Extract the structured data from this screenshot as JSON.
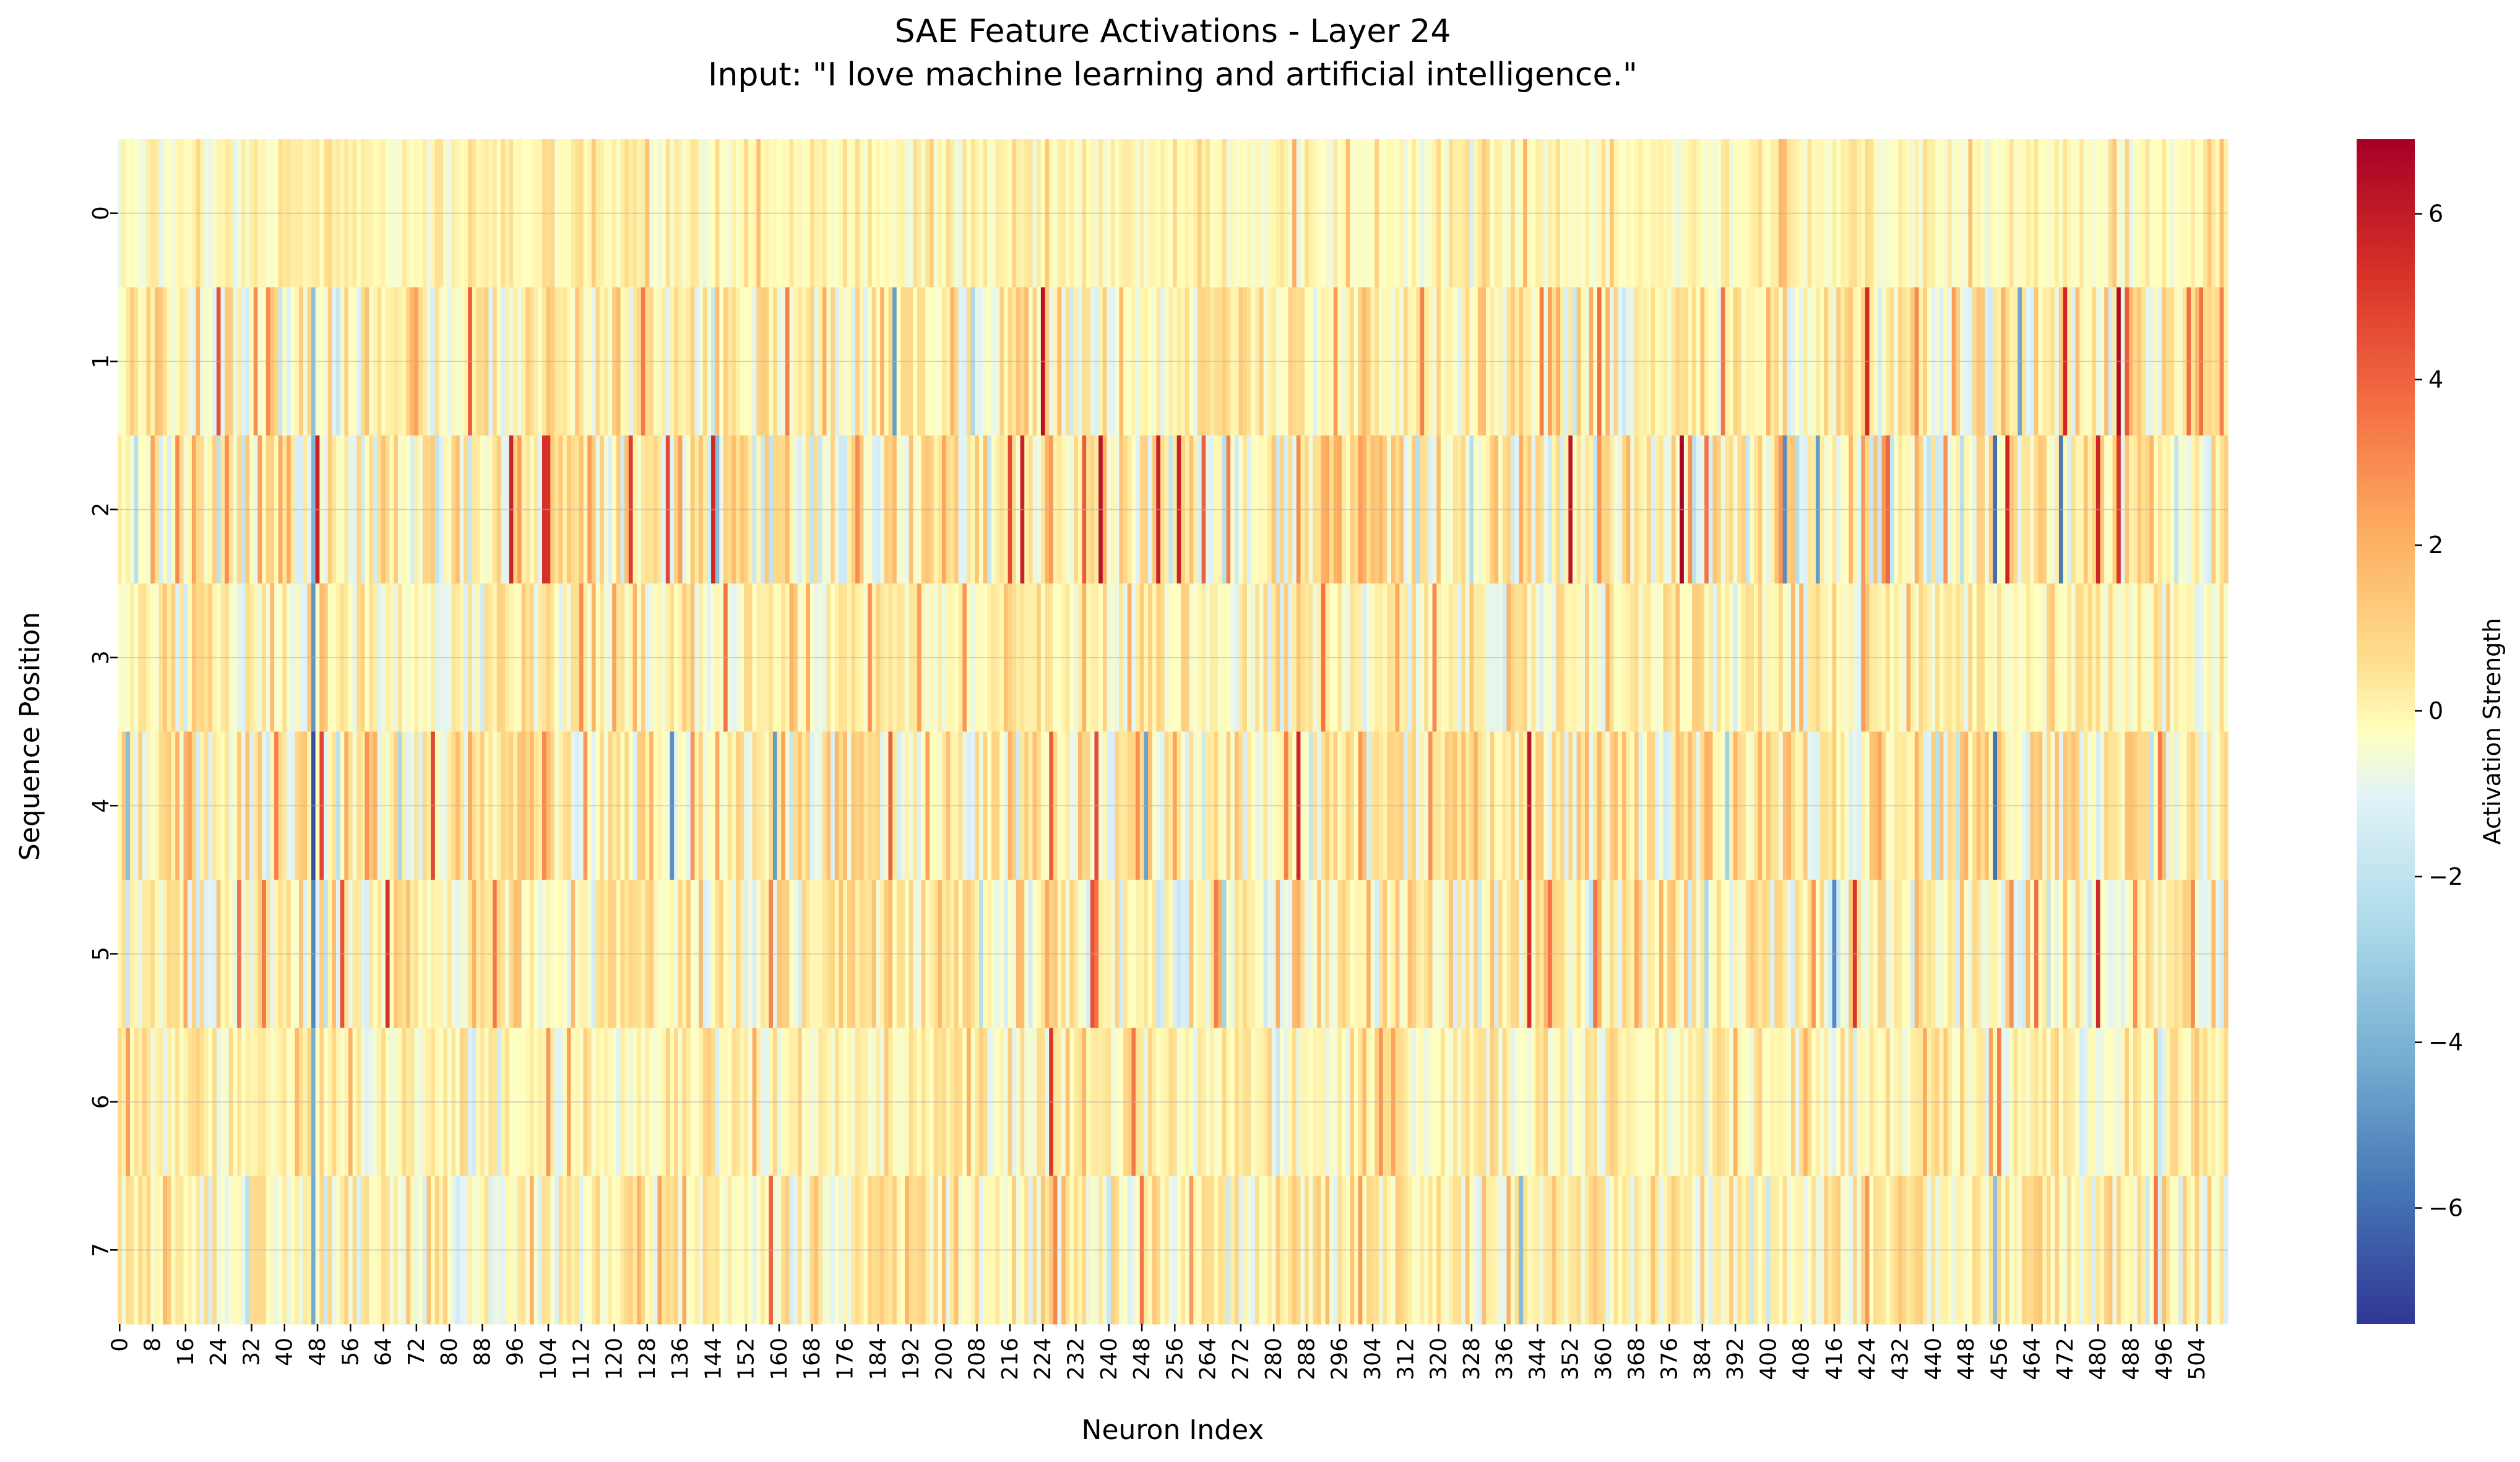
{
  "chart_data": {
    "type": "heatmap",
    "title": "SAE Feature Activations - Layer 24",
    "subtitle": "Input: \"I love machine learning and artificial intelligence.\"",
    "xlabel": "Neuron Index",
    "ylabel": "Sequence Position",
    "colorbar_label": "Activation Strength",
    "colormap": "RdYlBu_r",
    "vmin": -7.4,
    "vmax": 6.9,
    "n_neurons": 512,
    "n_positions": 8,
    "x_tick_labels": [
      "0",
      "8",
      "16",
      "24",
      "32",
      "40",
      "48",
      "56",
      "64",
      "72",
      "80",
      "88",
      "96",
      "104",
      "112",
      "120",
      "128",
      "136",
      "144",
      "152",
      "160",
      "168",
      "176",
      "184",
      "192",
      "200",
      "208",
      "216",
      "224",
      "232",
      "240",
      "248",
      "256",
      "264",
      "272",
      "280",
      "288",
      "296",
      "304",
      "312",
      "320",
      "328",
      "336",
      "344",
      "352",
      "360",
      "368",
      "376",
      "384",
      "392",
      "400",
      "408",
      "416",
      "424",
      "432",
      "440",
      "448",
      "456",
      "464",
      "472",
      "480",
      "488",
      "496",
      "504"
    ],
    "y_tick_labels": [
      "0",
      "1",
      "2",
      "3",
      "4",
      "5",
      "6",
      "7"
    ],
    "colorbar_ticks": [
      "6",
      "4",
      "2",
      "0",
      "−2",
      "−4",
      "−6"
    ],
    "colorbar_tick_values": [
      6,
      4,
      2,
      0,
      -2,
      -4,
      -6
    ],
    "row_scale": [
      0.45,
      1.0,
      1.25,
      0.7,
      1.05,
      1.0,
      0.65,
      0.8
    ],
    "highlights": [
      {
        "pos": 1,
        "neuron": 224,
        "value": 6.4
      },
      {
        "pos": 1,
        "neuron": 485,
        "value": 6.6
      },
      {
        "pos": 1,
        "neuron": 472,
        "value": 5.6
      },
      {
        "pos": 1,
        "neuron": 188,
        "value": -4.5
      },
      {
        "pos": 1,
        "neuron": 47,
        "value": -3.4
      },
      {
        "pos": 1,
        "neuron": 461,
        "value": -4.3
      },
      {
        "pos": 1,
        "neuron": 424,
        "value": 5.5
      },
      {
        "pos": 2,
        "neuron": 379,
        "value": 6.8
      },
      {
        "pos": 2,
        "neuron": 238,
        "value": 6.3
      },
      {
        "pos": 2,
        "neuron": 144,
        "value": 5.6
      },
      {
        "pos": 2,
        "neuron": 103,
        "value": 5.4
      },
      {
        "pos": 2,
        "neuron": 257,
        "value": 5.8
      },
      {
        "pos": 2,
        "neuron": 480,
        "value": 5.7
      },
      {
        "pos": 2,
        "neuron": 455,
        "value": -6.0
      },
      {
        "pos": 2,
        "neuron": 471,
        "value": -5.6
      },
      {
        "pos": 2,
        "neuron": 404,
        "value": -5.1
      },
      {
        "pos": 2,
        "neuron": 412,
        "value": -4.6
      },
      {
        "pos": 2,
        "neuron": 47,
        "value": -3.8
      },
      {
        "pos": 3,
        "neuron": 47,
        "value": -4.8
      },
      {
        "pos": 4,
        "neuron": 47,
        "value": -6.8
      },
      {
        "pos": 4,
        "neuron": 342,
        "value": 6.2
      },
      {
        "pos": 4,
        "neuron": 286,
        "value": 5.6
      },
      {
        "pos": 4,
        "neuron": 455,
        "value": -5.9
      },
      {
        "pos": 4,
        "neuron": 134,
        "value": -5.0
      },
      {
        "pos": 4,
        "neuron": 159,
        "value": -4.6
      },
      {
        "pos": 4,
        "neuron": 249,
        "value": -4.4
      },
      {
        "pos": 4,
        "neuron": 2,
        "value": -3.5
      },
      {
        "pos": 5,
        "neuron": 65,
        "value": 5.4
      },
      {
        "pos": 5,
        "neuron": 416,
        "value": -5.2
      },
      {
        "pos": 5,
        "neuron": 342,
        "value": 5.4
      },
      {
        "pos": 5,
        "neuron": 47,
        "value": -5.2
      },
      {
        "pos": 5,
        "neuron": 421,
        "value": 5.2
      },
      {
        "pos": 5,
        "neuron": 480,
        "value": 5.6
      },
      {
        "pos": 6,
        "neuron": 226,
        "value": 5.2
      },
      {
        "pos": 6,
        "neuron": 47,
        "value": -4.0
      },
      {
        "pos": 7,
        "neuron": 47,
        "value": -4.2
      },
      {
        "pos": 7,
        "neuron": 340,
        "value": -3.6
      },
      {
        "pos": 7,
        "neuron": 455,
        "value": -3.4
      }
    ]
  }
}
